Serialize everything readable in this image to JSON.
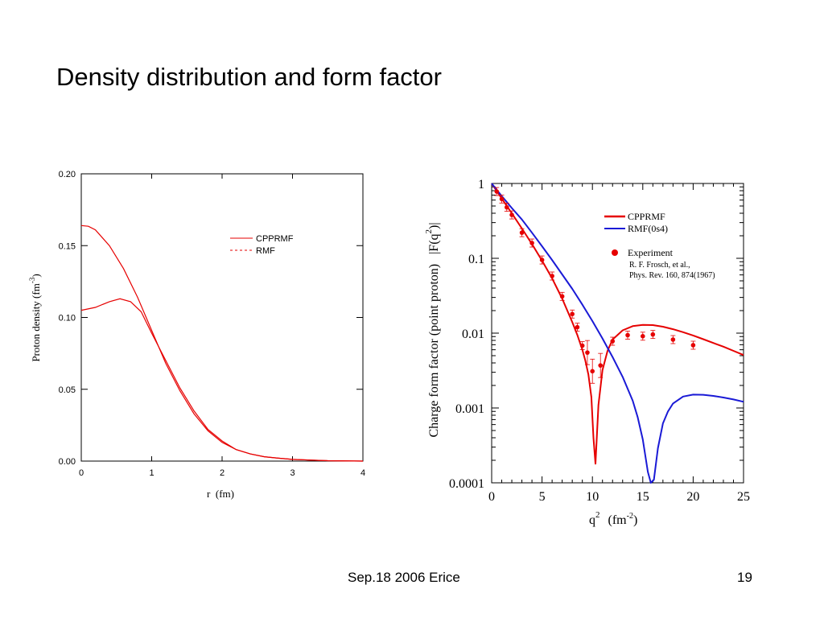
{
  "slide": {
    "title": "Density distribution and form factor",
    "footer_date": "Sep.18 2006 Erice",
    "page_number": "19"
  },
  "colors": {
    "red": "#e60000",
    "blue": "#1a1ad6",
    "black": "#000000"
  },
  "chart_data": [
    {
      "type": "line",
      "xlabel": "r  (fm)",
      "ylabel": "Proton density (fm",
      "ylabel_sup": "-3",
      "ylabel_close": ")",
      "xlim": [
        0,
        4
      ],
      "ylim": [
        0,
        0.2
      ],
      "x_ticks": [
        "0",
        "1",
        "2",
        "3",
        "4"
      ],
      "y_ticks": [
        "0.00",
        "0.05",
        "0.10",
        "0.15",
        "0.20"
      ],
      "legend_position": "top-right",
      "series": [
        {
          "name": "CPPRMF",
          "style": "solid",
          "color": "#e60000",
          "x": [
            0,
            0.1,
            0.2,
            0.4,
            0.6,
            0.8,
            1.0,
            1.2,
            1.4,
            1.6,
            1.8,
            2.0,
            2.2,
            2.4,
            2.6,
            2.8,
            3.0,
            3.5,
            4.0
          ],
          "y": [
            0.164,
            0.1635,
            0.161,
            0.15,
            0.134,
            0.114,
            0.091,
            0.068,
            0.049,
            0.033,
            0.021,
            0.013,
            0.008,
            0.005,
            0.003,
            0.002,
            0.0012,
            0.0003,
            0.0
          ]
        },
        {
          "name": "RMF",
          "style": "dashed",
          "color": "#e60000",
          "x": [
            0,
            0.2,
            0.4,
            0.55,
            0.7,
            0.85,
            1.0,
            1.2,
            1.4,
            1.6,
            1.8,
            2.0,
            2.2,
            2.4,
            2.6,
            2.8,
            3.0,
            3.5,
            4.0
          ],
          "y": [
            0.105,
            0.107,
            0.111,
            0.113,
            0.111,
            0.104,
            0.089,
            0.07,
            0.051,
            0.035,
            0.022,
            0.014,
            0.008,
            0.005,
            0.003,
            0.002,
            0.0012,
            0.0003,
            0.0
          ]
        }
      ]
    },
    {
      "type": "line",
      "xlabel": "q",
      "xlabel_sup": "2",
      "xlabel_unit": "(fm",
      "xlabel_unit_sup": "-2",
      "xlabel_unit_close": ")",
      "ylabel": "Charge form factor (point proton)   |F(q",
      "ylabel_sup": "2",
      "ylabel_close": ")|",
      "y_scale": "log",
      "xlim": [
        0,
        25
      ],
      "ylim": [
        0.0001,
        1
      ],
      "x_ticks": [
        "0",
        "5",
        "10",
        "15",
        "20",
        "25"
      ],
      "y_ticks": [
        "0.0001",
        "0.001",
        "0.01",
        "0.1",
        "1"
      ],
      "legend_position": "top-right",
      "annotation_lines": [
        "R. F. Frosch, et al.,",
        "Phys. Rev. 160, 874(1967)"
      ],
      "series": [
        {
          "name": "CPPRMF",
          "color": "#e60000",
          "x": [
            0,
            1,
            2,
            3,
            4,
            5,
            6,
            7,
            8,
            8.5,
            9,
            9.3,
            9.6,
            9.9,
            10.1,
            10.3,
            10.6,
            11,
            11.5,
            12,
            13,
            14,
            15,
            16,
            17,
            18,
            19,
            20,
            21,
            22,
            23,
            24,
            25
          ],
          "y": [
            1,
            0.63,
            0.4,
            0.25,
            0.155,
            0.093,
            0.054,
            0.029,
            0.014,
            0.0095,
            0.006,
            0.0043,
            0.0028,
            0.0014,
            0.0004,
            0.00018,
            0.0011,
            0.0032,
            0.0058,
            0.0082,
            0.0109,
            0.0124,
            0.0129,
            0.0128,
            0.0122,
            0.0113,
            0.0103,
            0.0093,
            0.0083,
            0.0074,
            0.0066,
            0.0058,
            0.0051
          ]
        },
        {
          "name": "RMF(0s4)",
          "color": "#1a1ad6",
          "x": [
            0,
            1,
            2,
            3,
            4,
            5,
            6,
            7,
            8,
            9,
            10,
            11,
            12,
            13,
            14,
            14.5,
            15,
            15.5,
            15.8,
            16.1,
            16.5,
            17,
            17.5,
            18,
            19,
            20,
            21,
            22,
            23,
            24,
            25
          ],
          "y": [
            1,
            0.68,
            0.47,
            0.33,
            0.22,
            0.145,
            0.095,
            0.061,
            0.039,
            0.024,
            0.0145,
            0.0085,
            0.0048,
            0.0026,
            0.00125,
            0.00075,
            0.00038,
            0.00014,
            9e-05,
            0.00011,
            0.00029,
            0.00062,
            0.0009,
            0.00115,
            0.00142,
            0.00151,
            0.0015,
            0.00145,
            0.00138,
            0.0013,
            0.00121
          ]
        },
        {
          "name": "Experiment",
          "color": "#e60000",
          "marker": "circle",
          "x": [
            0.5,
            1.0,
            1.5,
            2.0,
            3.0,
            4.0,
            5.0,
            6.0,
            7.0,
            8.0,
            8.5,
            9.0,
            9.5,
            10.0,
            10.8,
            12.0,
            13.5,
            15.0,
            16.0,
            18.0,
            20.0
          ],
          "y": [
            0.78,
            0.62,
            0.48,
            0.38,
            0.22,
            0.16,
            0.095,
            0.058,
            0.031,
            0.018,
            0.012,
            0.0068,
            0.0055,
            0.0031,
            0.0037,
            0.0078,
            0.0094,
            0.0091,
            0.0096,
            0.0082,
            0.0069
          ]
        }
      ]
    }
  ]
}
